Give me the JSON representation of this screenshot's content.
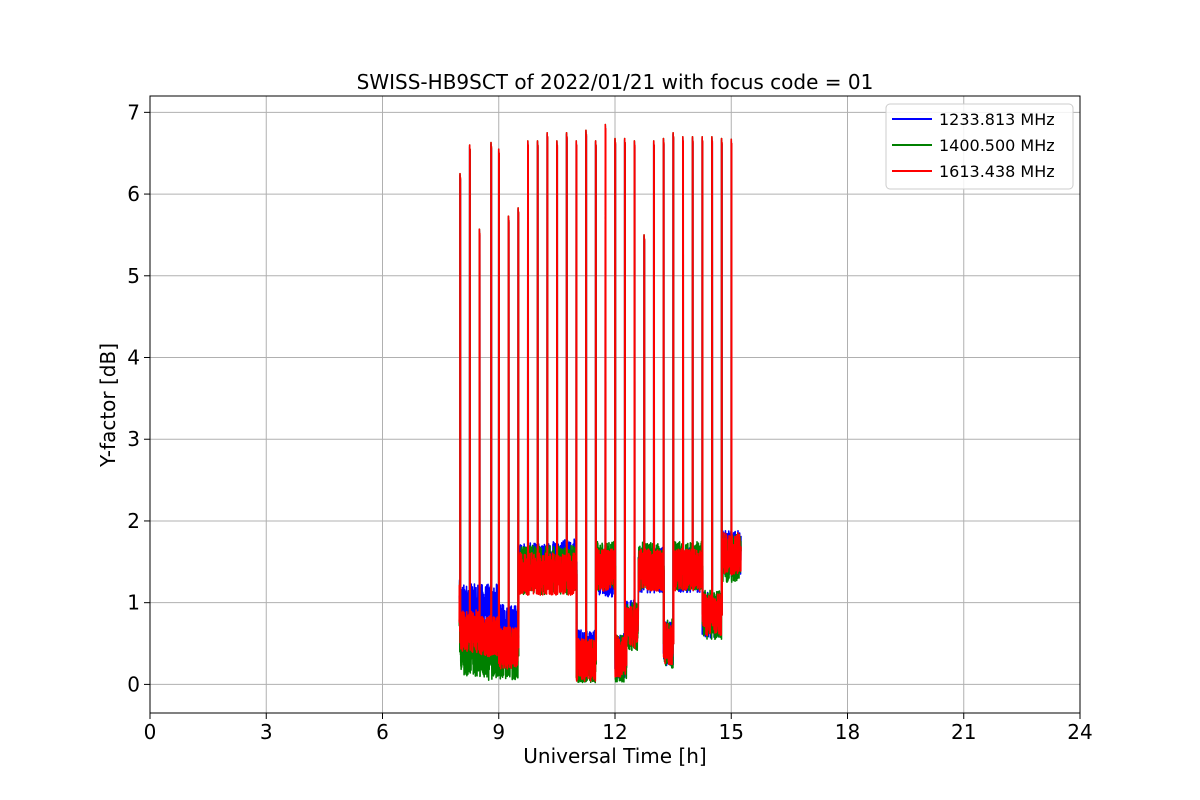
{
  "chart_data": {
    "type": "line",
    "title": "SWISS-HB9SCT of 2022/01/21 with focus code = 01",
    "xlabel": "Universal Time [h]",
    "ylabel": "Y-factor [dB]",
    "xlim": [
      0,
      24
    ],
    "ylim": [
      -0.35,
      7.2
    ],
    "xticks": [
      0,
      3,
      6,
      9,
      12,
      15,
      18,
      21,
      24
    ],
    "yticks": [
      0,
      1,
      2,
      3,
      4,
      5,
      6,
      7
    ],
    "xtick_labels": [
      "0",
      "3",
      "6",
      "9",
      "12",
      "15",
      "18",
      "21",
      "24"
    ],
    "ytick_labels": [
      "0",
      "1",
      "2",
      "3",
      "4",
      "5",
      "6",
      "7"
    ],
    "grid": true,
    "legend_position": "top-right",
    "series": [
      {
        "name": "1233.813 MHz",
        "color": "#0000ff"
      },
      {
        "name": "1400.500 MHz",
        "color": "#008000"
      },
      {
        "name": "1613.438 MHz",
        "color": "#ff0000"
      }
    ],
    "calibration_peaks": {
      "x": [
        8.0,
        8.25,
        8.5,
        8.8,
        9.0,
        9.25,
        9.5,
        9.75,
        10.0,
        10.25,
        10.5,
        10.75,
        11.0,
        11.25,
        11.5,
        11.75,
        12.0,
        12.25,
        12.5,
        12.75,
        13.0,
        13.25,
        13.5,
        13.75,
        14.0,
        14.25,
        14.5,
        14.75,
        15.0
      ],
      "y": [
        6.25,
        6.6,
        5.57,
        6.63,
        6.55,
        5.73,
        5.83,
        6.65,
        6.65,
        6.75,
        6.65,
        6.75,
        6.65,
        6.78,
        6.65,
        6.85,
        6.68,
        6.68,
        6.65,
        5.5,
        6.65,
        6.68,
        6.75,
        6.7,
        6.7,
        6.7,
        6.7,
        6.68,
        6.67
      ]
    },
    "baseline_segments": [
      {
        "x_start": 8.0,
        "x_end": 8.5,
        "series_levels": [
          0.95,
          0.4,
          0.65
        ]
      },
      {
        "x_start": 8.5,
        "x_end": 9.0,
        "series_levels": [
          0.95,
          0.35,
          0.6
        ]
      },
      {
        "x_start": 9.0,
        "x_end": 9.5,
        "series_levels": [
          0.7,
          0.35,
          0.45
        ]
      },
      {
        "x_start": 9.5,
        "x_end": 10.25,
        "series_levels": [
          1.45,
          1.4,
          1.35
        ]
      },
      {
        "x_start": 10.25,
        "x_end": 11.0,
        "series_levels": [
          1.5,
          1.4,
          1.35
        ]
      },
      {
        "x_start": 11.0,
        "x_end": 11.5,
        "series_levels": [
          0.4,
          0.25,
          0.3
        ]
      },
      {
        "x_start": 11.5,
        "x_end": 12.0,
        "series_levels": [
          1.35,
          1.45,
          1.4
        ]
      },
      {
        "x_start": 12.0,
        "x_end": 12.3,
        "series_levels": [
          0.35,
          0.3,
          0.35
        ]
      },
      {
        "x_start": 12.3,
        "x_end": 12.6,
        "series_levels": [
          0.75,
          0.7,
          0.7
        ]
      },
      {
        "x_start": 12.6,
        "x_end": 13.25,
        "series_levels": [
          1.4,
          1.45,
          1.4
        ]
      },
      {
        "x_start": 13.25,
        "x_end": 13.5,
        "series_levels": [
          0.5,
          0.5,
          0.5
        ]
      },
      {
        "x_start": 13.5,
        "x_end": 14.25,
        "series_levels": [
          1.4,
          1.45,
          1.4
        ]
      },
      {
        "x_start": 14.25,
        "x_end": 14.75,
        "series_levels": [
          0.85,
          0.85,
          0.85
        ]
      },
      {
        "x_start": 14.75,
        "x_end": 15.25,
        "series_levels": [
          1.6,
          1.55,
          1.6
        ]
      }
    ]
  }
}
